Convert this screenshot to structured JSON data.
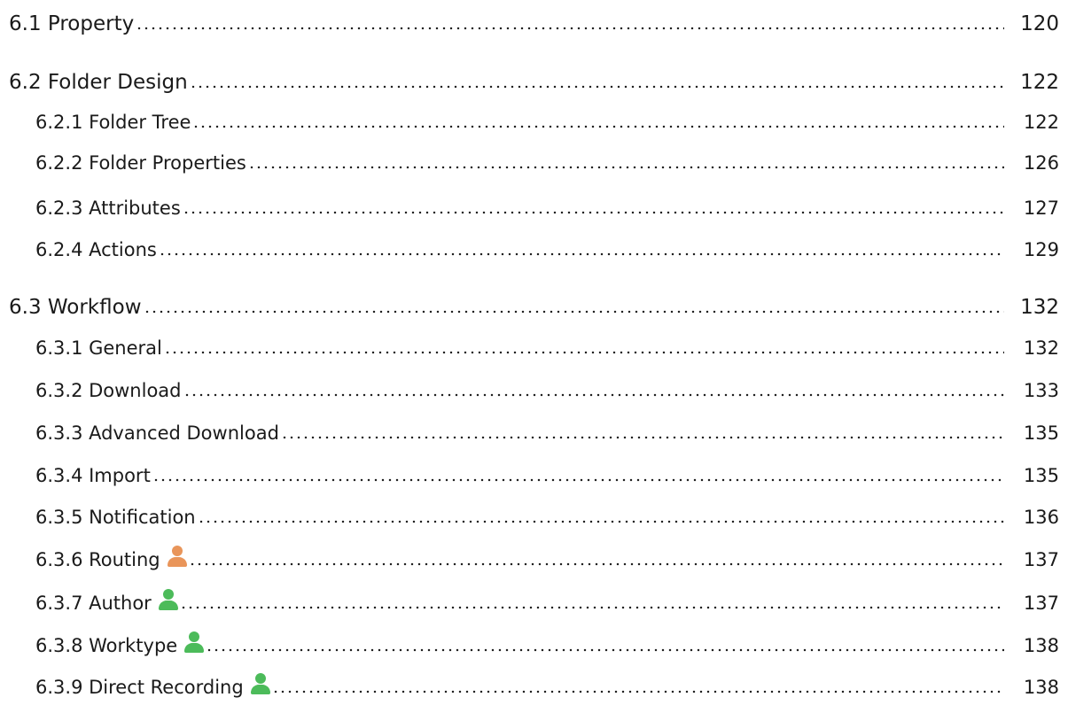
{
  "icon_colors": {
    "orange": "#e9955a",
    "green": "#4cbb5a"
  },
  "entries": [
    {
      "id": "6-1",
      "title": "6.1 Property",
      "page": "120",
      "level": 1
    },
    {
      "id": "6-2",
      "title": "6.2 Folder Design",
      "page": "122",
      "level": 1
    },
    {
      "id": "6-2-1",
      "title": "6.2.1 Folder Tree",
      "page": "122",
      "level": 2
    },
    {
      "id": "6-2-2",
      "title": "6.2.2 Folder Properties",
      "page": "126",
      "level": 2
    },
    {
      "id": "6-2-3",
      "title": "6.2.3 Attributes",
      "page": "127",
      "level": 2
    },
    {
      "id": "6-2-4",
      "title": "6.2.4 Actions",
      "page": "129",
      "level": 2
    },
    {
      "id": "6-3",
      "title": "6.3 Workflow",
      "page": "132",
      "level": 1
    },
    {
      "id": "6-3-1",
      "title": "6.3.1 General",
      "page": "132",
      "level": 2
    },
    {
      "id": "6-3-2",
      "title": "6.3.2 Download",
      "page": "133",
      "level": 2
    },
    {
      "id": "6-3-3",
      "title": "6.3.3 Advanced Download",
      "page": "135",
      "level": 2
    },
    {
      "id": "6-3-4",
      "title": "6.3.4 Import",
      "page": "135",
      "level": 2
    },
    {
      "id": "6-3-5",
      "title": "6.3.5 Notification",
      "page": "136",
      "level": 2
    },
    {
      "id": "6-3-6",
      "title": "6.3.6 Routing",
      "page": "137",
      "level": 2,
      "icon": "user-icon",
      "icon_color": "orange"
    },
    {
      "id": "6-3-7",
      "title": "6.3.7 Author",
      "page": "137",
      "level": 2,
      "icon": "user-icon",
      "icon_color": "green"
    },
    {
      "id": "6-3-8",
      "title": "6.3.8 Worktype",
      "page": "138",
      "level": 2,
      "icon": "user-icon",
      "icon_color": "green"
    },
    {
      "id": "6-3-9",
      "title": "6.3.9 Direct Recording",
      "page": "138",
      "level": 2,
      "icon": "user-icon",
      "icon_color": "green"
    }
  ]
}
